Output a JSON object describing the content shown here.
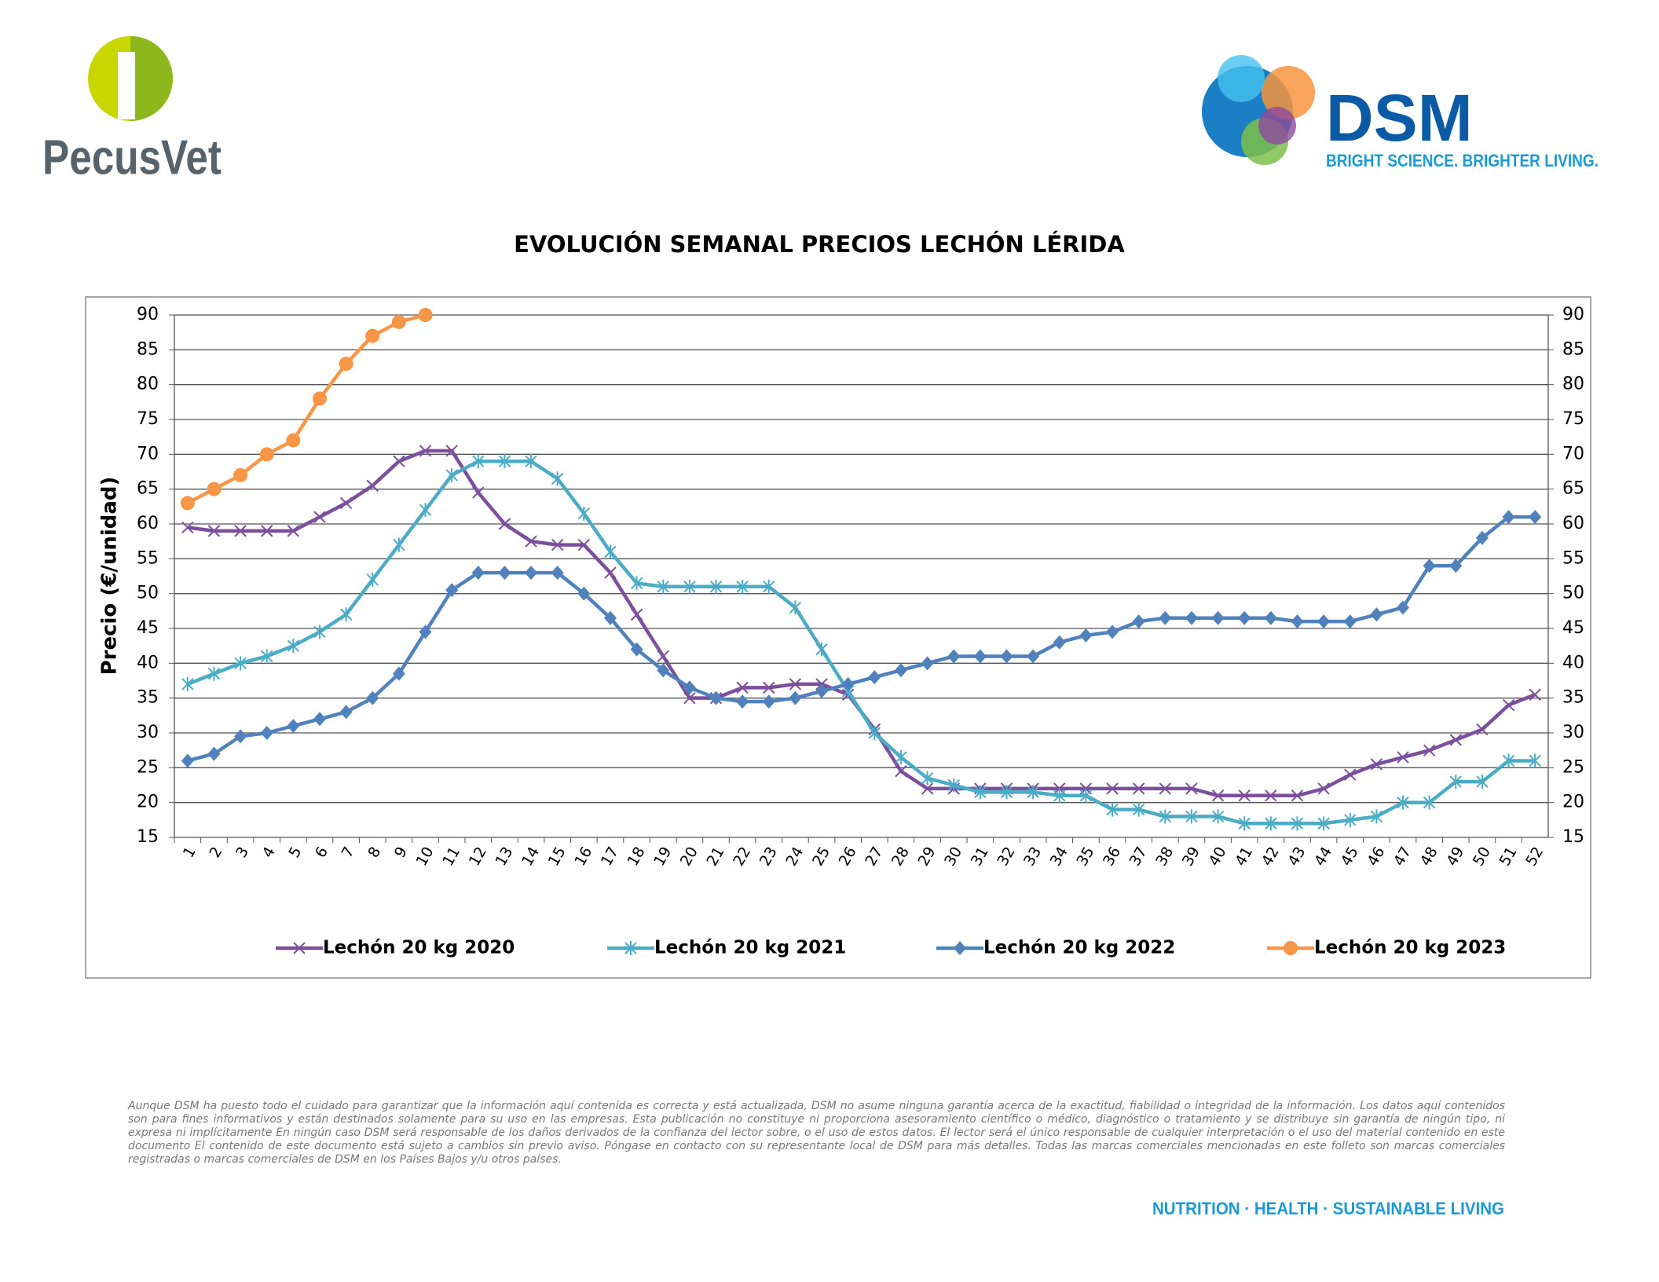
{
  "header": {
    "left_logo": "PecusVet",
    "right_logo": "DSM",
    "right_tagline": "BRIGHT SCIENCE. BRIGHTER LIVING."
  },
  "chart_data": {
    "type": "line",
    "title": "EVOLUCIÓN SEMANAL PRECIOS LECHÓN LÉRIDA",
    "y_label": "Precio (€/unidad)",
    "categories": [
      "1",
      "2",
      "3",
      "4",
      "5",
      "6",
      "7",
      "8",
      "9",
      "10",
      "11",
      "12",
      "13",
      "14",
      "15",
      "16",
      "17",
      "18",
      "19",
      "20",
      "21",
      "22",
      "23",
      "24",
      "25",
      "26",
      "27",
      "28",
      "29",
      "30",
      "31",
      "32",
      "33",
      "34",
      "35",
      "36",
      "37",
      "38",
      "39",
      "40",
      "41",
      "42",
      "43",
      "44",
      "45",
      "46",
      "47",
      "48",
      "49",
      "50",
      "51",
      "52"
    ],
    "series": [
      {
        "name": "Lechón 20 kg 2020",
        "color": "#7b4f9d",
        "marker": "x",
        "values": [
          59.5,
          59,
          59,
          59,
          59,
          61,
          63,
          65.5,
          69,
          70.5,
          70.5,
          64.5,
          60,
          57.5,
          57,
          57,
          53,
          47,
          41,
          35,
          35,
          36.5,
          36.5,
          37,
          37,
          35.5,
          30.5,
          24.5,
          22,
          22,
          22,
          22,
          22,
          22,
          22,
          22,
          22,
          22,
          22,
          21,
          21,
          21,
          21,
          22,
          24,
          25.5,
          26.5,
          27.5,
          29,
          30.5,
          34,
          35.5
        ]
      },
      {
        "name": "Lechón 20 kg 2021",
        "color": "#4bacc6",
        "marker": "asterisk",
        "values": [
          37,
          38.5,
          40,
          41,
          42.5,
          44.5,
          47,
          52,
          57,
          62,
          67,
          69,
          69,
          69,
          66.5,
          61.5,
          56,
          51.5,
          51,
          51,
          51,
          51,
          51,
          48,
          42,
          36,
          30,
          26.5,
          23.5,
          22.5,
          21.5,
          21.5,
          21.5,
          21,
          21,
          19,
          19,
          18,
          18,
          18,
          17,
          17,
          17,
          17,
          17.5,
          18,
          20,
          20,
          23,
          23,
          26,
          26
        ]
      },
      {
        "name": "Lechón 20 kg 2022",
        "color": "#4f81bd",
        "marker": "diamond",
        "values": [
          26,
          27,
          29.5,
          30,
          31,
          32,
          33,
          35,
          38.5,
          44.5,
          50.5,
          53,
          53,
          53,
          53,
          50,
          46.5,
          42,
          39,
          36.5,
          35,
          34.5,
          34.5,
          35,
          36,
          37,
          38,
          39,
          40,
          41,
          41,
          41,
          41,
          43,
          44,
          44.5,
          46,
          46.5,
          46.5,
          46.5,
          46.5,
          46.5,
          46,
          46,
          46,
          47,
          48,
          54,
          54,
          58,
          61,
          61
        ]
      },
      {
        "name": "Lechón 20 kg 2023",
        "color": "#f79646",
        "marker": "circle",
        "values": [
          63,
          65,
          67,
          70,
          72,
          78,
          83,
          87,
          89,
          90,
          null,
          null,
          null,
          null,
          null,
          null,
          null,
          null,
          null,
          null,
          null,
          null,
          null,
          null,
          null,
          null,
          null,
          null,
          null,
          null,
          null,
          null,
          null,
          null,
          null,
          null,
          null,
          null,
          null,
          null,
          null,
          null,
          null,
          null,
          null,
          null,
          null,
          null,
          null,
          null,
          null,
          null
        ]
      }
    ],
    "ylim": [
      15,
      90
    ],
    "yticks": [
      15,
      20,
      25,
      30,
      35,
      40,
      45,
      50,
      55,
      60,
      65,
      70,
      75,
      80,
      85,
      90
    ],
    "y2lim": [
      15,
      90
    ],
    "y2ticks": [
      15,
      20,
      25,
      30,
      35,
      40,
      45,
      50,
      55,
      60,
      65,
      70,
      75,
      80,
      85,
      90
    ],
    "grid": true,
    "legend": "bottom"
  },
  "footer": {
    "disclaimer": "Aunque DSM ha puesto todo el cuidado para garantizar que la información aquí contenida es correcta y está actualizada, DSM no asume ninguna garantía acerca de la exactitud, fiabilidad o integridad de la información. Los datos aquí contenidos son para fines informativos y están destinados solamente para su uso en las empresas. Esta publicación no constituye ni proporciona asesoramiento científico o médico, diagnóstico o tratamiento y se distribuye sin garantía de ningún tipo, ni expresa ni implícitamente En ningún caso DSM será responsable de los daños derivados de la confianza del lector sobre, o el uso de estos datos. El lector será el único responsable de cualquier interpretación o el uso del material contenido en este documento El contenido de este documento está sujeto a cambios sin previo aviso. Póngase en contacto con su representante local de DSM para más detalles. Todas las marcas comerciales mencionadas en este folleto son marcas comerciales registradas o marcas comerciales de DSM en los Países Bajos y/u otros países.",
    "tagline": "NUTRITION · HEALTH · SUSTAINABLE LIVING"
  }
}
